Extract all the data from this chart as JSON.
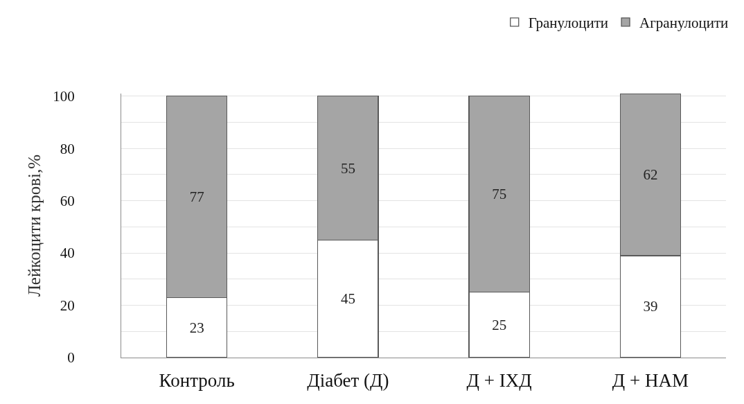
{
  "chart_data": {
    "type": "bar",
    "stacked": true,
    "categories": [
      "Контроль",
      "Діабет (Д)",
      "Д + ІХД",
      "Д + НАМ"
    ],
    "series": [
      {
        "name": "Гранулоцити",
        "color": "#ffffff",
        "values": [
          23,
          45,
          25,
          39
        ]
      },
      {
        "name": "Агранулоцити",
        "color": "#a5a5a5",
        "values": [
          77,
          55,
          75,
          62
        ]
      }
    ],
    "ylabel": "Лейкоцити крові,%",
    "ylim": [
      0,
      101
    ],
    "yticks": [
      0,
      {
        "value": 10,
        "label": null
      },
      20,
      {
        "value": 30,
        "label": null
      },
      40,
      {
        "value": 50,
        "label": null
      },
      60,
      {
        "value": 70,
        "label": null
      },
      80,
      {
        "value": 90,
        "label": null
      },
      100
    ],
    "grid": "y",
    "legend": "top right",
    "data_labels": true
  }
}
